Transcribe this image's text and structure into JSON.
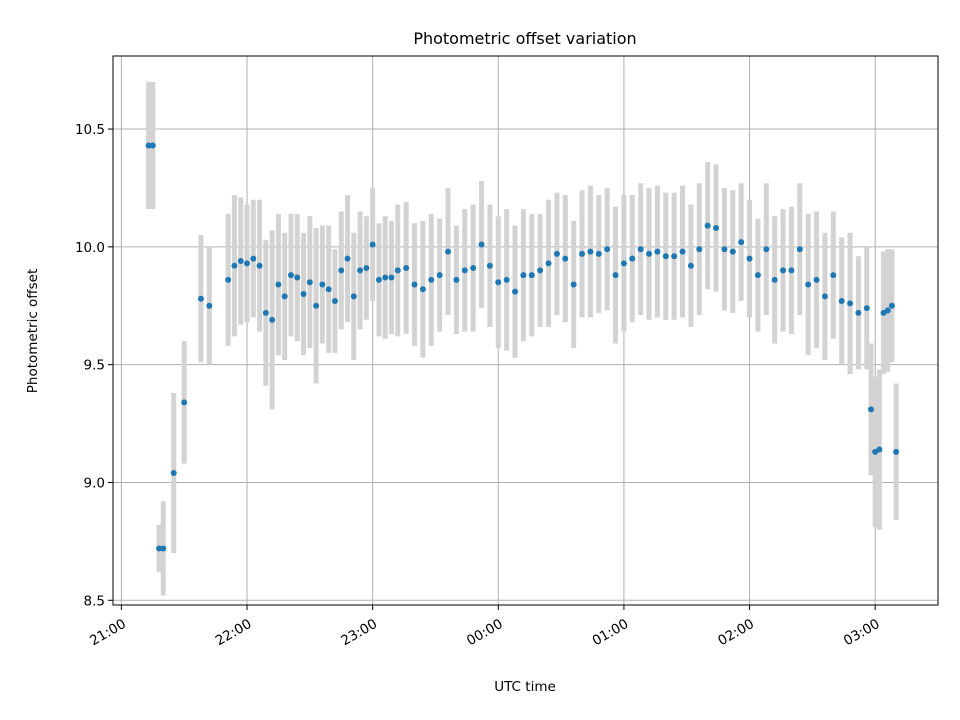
{
  "chart_data": {
    "type": "scatter",
    "title": "Photometric offset variation",
    "xlabel": "UTC time",
    "ylabel": "Photometric offset",
    "x_ticks": [
      "21:00",
      "22:00",
      "23:00",
      "00:00",
      "01:00",
      "02:00",
      "03:00"
    ],
    "y_ticks": [
      "8.5",
      "9.0",
      "9.5",
      "10.0",
      "10.5"
    ],
    "ylim": [
      8.48,
      10.81
    ],
    "xlim": [
      "20:56",
      "03:30"
    ],
    "grid": true,
    "legend": "none",
    "colors": {
      "points": "#1f77b4",
      "errorbars": "#d3d3d3",
      "grid": "#b0b0b0"
    },
    "series": [
      {
        "x": [
          "21:13",
          "21:15",
          "21:18",
          "21:20",
          "21:25",
          "21:30",
          "21:38",
          "21:42",
          "21:51",
          "21:54",
          "21:57",
          "22:00",
          "22:03",
          "22:06",
          "22:09",
          "22:12",
          "22:15",
          "22:18",
          "22:21",
          "22:24",
          "22:27",
          "22:30",
          "22:33",
          "22:36",
          "22:39",
          "22:42",
          "22:45",
          "22:48",
          "22:51",
          "22:54",
          "22:57",
          "23:00",
          "23:03",
          "23:06",
          "23:09",
          "23:12",
          "23:16",
          "23:20",
          "23:24",
          "23:28",
          "23:32",
          "23:36",
          "23:40",
          "23:44",
          "23:48",
          "23:52",
          "23:56",
          "00:00",
          "00:04",
          "00:08",
          "00:12",
          "00:16",
          "00:20",
          "00:24",
          "00:28",
          "00:32",
          "00:36",
          "00:40",
          "00:44",
          "00:48",
          "00:52",
          "00:56",
          "01:00",
          "01:04",
          "01:08",
          "01:12",
          "01:16",
          "01:20",
          "01:24",
          "01:28",
          "01:32",
          "01:36",
          "01:40",
          "01:44",
          "01:48",
          "01:52",
          "01:56",
          "02:00",
          "02:04",
          "02:08",
          "02:12",
          "02:16",
          "02:20",
          "02:24",
          "02:28",
          "02:32",
          "02:36",
          "02:40",
          "02:44",
          "02:48",
          "02:52",
          "02:56",
          "02:58",
          "03:00",
          "03:02",
          "03:04",
          "03:06",
          "03:08",
          "03:10"
        ],
        "y": [
          10.43,
          10.43,
          8.72,
          8.72,
          9.04,
          9.34,
          9.78,
          9.75,
          9.86,
          9.92,
          9.94,
          9.93,
          9.95,
          9.92,
          9.72,
          9.69,
          9.84,
          9.79,
          9.88,
          9.87,
          9.8,
          9.85,
          9.75,
          9.84,
          9.82,
          9.77,
          9.9,
          9.95,
          9.79,
          9.9,
          9.91,
          10.01,
          9.86,
          9.87,
          9.87,
          9.9,
          9.91,
          9.84,
          9.82,
          9.86,
          9.88,
          9.98,
          9.86,
          9.9,
          9.91,
          10.01,
          9.92,
          9.85,
          9.86,
          9.81,
          9.88,
          9.88,
          9.9,
          9.93,
          9.97,
          9.95,
          9.84,
          9.97,
          9.98,
          9.97,
          9.99,
          9.88,
          9.93,
          9.95,
          9.99,
          9.97,
          9.98,
          9.96,
          9.96,
          9.98,
          9.92,
          9.99,
          10.09,
          10.08,
          9.99,
          9.98,
          10.02,
          9.95,
          9.88,
          9.99,
          9.86,
          9.9,
          9.9,
          9.99,
          9.84,
          9.86,
          9.79,
          9.88,
          9.77,
          9.76,
          9.72,
          9.74,
          9.31,
          9.13,
          9.14,
          9.72,
          9.73,
          9.75,
          9.13
        ],
        "err": [
          0.27,
          0.27,
          0.1,
          0.2,
          0.34,
          0.26,
          0.27,
          0.25,
          0.28,
          0.3,
          0.27,
          0.25,
          0.25,
          0.28,
          0.31,
          0.38,
          0.3,
          0.27,
          0.26,
          0.27,
          0.26,
          0.28,
          0.33,
          0.25,
          0.27,
          0.22,
          0.25,
          0.27,
          0.27,
          0.25,
          0.22,
          0.24,
          0.24,
          0.26,
          0.24,
          0.28,
          0.28,
          0.26,
          0.29,
          0.28,
          0.24,
          0.27,
          0.23,
          0.26,
          0.27,
          0.27,
          0.26,
          0.28,
          0.3,
          0.28,
          0.28,
          0.26,
          0.24,
          0.27,
          0.26,
          0.27,
          0.27,
          0.27,
          0.28,
          0.25,
          0.26,
          0.29,
          0.29,
          0.27,
          0.28,
          0.28,
          0.28,
          0.27,
          0.27,
          0.28,
          0.26,
          0.28,
          0.27,
          0.27,
          0.26,
          0.26,
          0.25,
          0.25,
          0.24,
          0.28,
          0.27,
          0.26,
          0.27,
          0.28,
          0.3,
          0.29,
          0.27,
          0.27,
          0.27,
          0.3,
          0.24,
          0.26,
          0.28,
          0.32,
          0.34,
          0.26,
          0.26,
          0.24,
          0.29
        ]
      }
    ]
  }
}
